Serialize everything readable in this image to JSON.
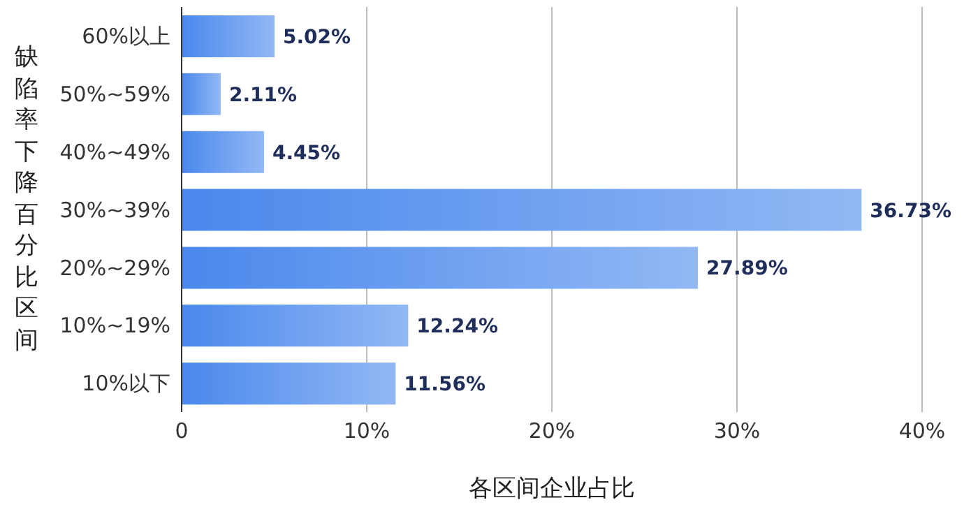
{
  "chart_data": {
    "type": "bar",
    "orientation": "horizontal",
    "ylabel": "缺陷率下降百分比区间",
    "xlabel": "各区间企业占比",
    "categories": [
      "60%以上",
      "50%~59%",
      "40%~49%",
      "30%~39%",
      "20%~29%",
      "10%~19%",
      "10%以下"
    ],
    "values": [
      5.02,
      2.11,
      4.45,
      36.73,
      27.89,
      12.24,
      11.56
    ],
    "value_labels": [
      "5.02%",
      "2.11%",
      "4.45%",
      "36.73%",
      "27.89%",
      "12.24%",
      "11.56%"
    ],
    "color": "#4a88ec",
    "xlim": [
      0,
      40
    ],
    "xticks": [
      0,
      {
        "value": 10,
        "label": "10%"
      },
      {
        "value": 20,
        "label": "20%"
      },
      {
        "value": 30,
        "label": "30%"
      },
      {
        "value": 40,
        "label": "40%"
      }
    ],
    "grid": "x",
    "legend": false
  }
}
